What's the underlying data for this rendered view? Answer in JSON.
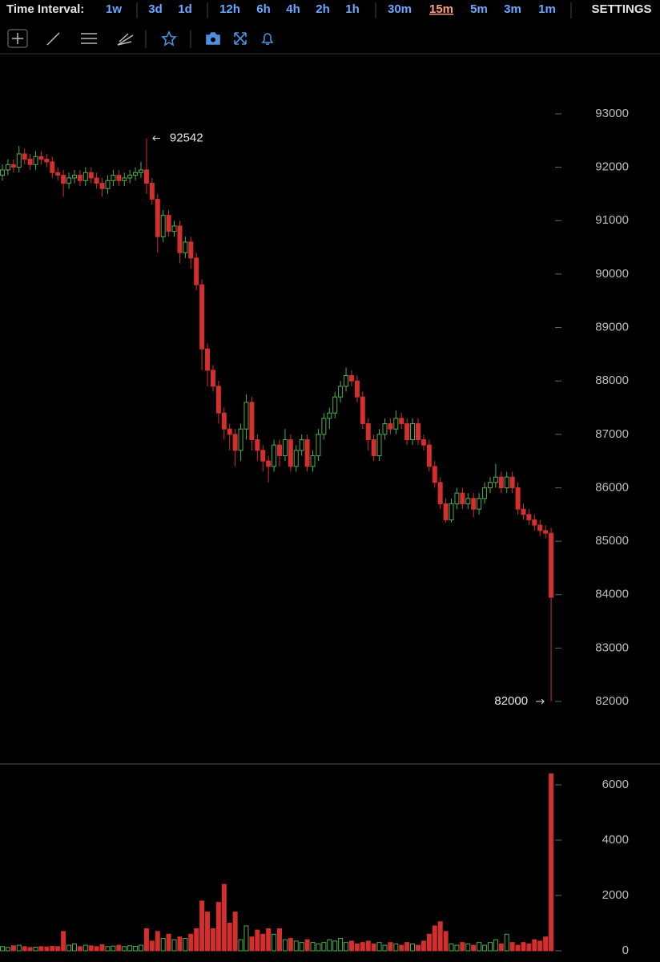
{
  "toolbar": {
    "label": "Time Interval:",
    "intervals": [
      {
        "label": "1w"
      },
      {
        "label": "3d"
      },
      {
        "label": "1d"
      },
      {
        "label": "12h"
      },
      {
        "label": "6h"
      },
      {
        "label": "4h"
      },
      {
        "label": "2h"
      },
      {
        "label": "1h"
      },
      {
        "label": "30m"
      },
      {
        "label": "15m",
        "selected": true
      },
      {
        "label": "5m"
      },
      {
        "label": "3m"
      },
      {
        "label": "1m"
      }
    ],
    "settings": "SETTINGS"
  },
  "chart_data": [
    {
      "type": "candlestick",
      "up_color": "#4caf50",
      "down_color": "#d32f2f",
      "ylim": [
        80830,
        94125
      ],
      "yticks": [
        82000,
        83000,
        84000,
        85000,
        86000,
        87000,
        88000,
        89000,
        90000,
        91000,
        92000,
        93000
      ],
      "open": [
        91850,
        91950,
        92050,
        92000,
        92250,
        92150,
        92050,
        92200,
        92150,
        92100,
        91900,
        91850,
        91700,
        91800,
        91850,
        91750,
        91900,
        91800,
        91700,
        91600,
        91750,
        91850,
        91750,
        91800,
        91850,
        91900,
        91950,
        91700,
        91400,
        90700,
        91100,
        90800,
        90900,
        90400,
        90600,
        90300,
        89800,
        88600,
        88200,
        87900,
        87400,
        87100,
        87000,
        86700,
        87100,
        87600,
        86900,
        86700,
        86500,
        86400,
        86800,
        86600,
        86900,
        86400,
        86700,
        86900,
        86400,
        86600,
        87000,
        87300,
        87400,
        87700,
        87900,
        88100,
        88000,
        87700,
        87200,
        86900,
        86600,
        87000,
        87200,
        87100,
        87300,
        87200,
        86900,
        87200,
        86900,
        86800,
        86400,
        86100,
        85700,
        85400,
        85700,
        85900,
        85700,
        85800,
        85600,
        85800,
        86000,
        86100,
        86200,
        86000,
        86200,
        86000,
        85600,
        85500,
        85400,
        85300,
        85200,
        85150
      ],
      "high": [
        92050,
        92150,
        92150,
        92400,
        92350,
        92250,
        92300,
        92300,
        92250,
        92200,
        92000,
        91950,
        91900,
        91950,
        91950,
        92000,
        92000,
        91900,
        91800,
        91850,
        91950,
        91950,
        91900,
        91950,
        92000,
        92100,
        92542,
        91800,
        91500,
        91200,
        91200,
        91000,
        91000,
        90700,
        90700,
        90400,
        89900,
        88700,
        88300,
        88000,
        87500,
        87200,
        87100,
        87200,
        87750,
        87700,
        87000,
        86800,
        86600,
        86900,
        86900,
        87100,
        87000,
        86800,
        87000,
        87000,
        86700,
        87100,
        87400,
        87500,
        87800,
        88000,
        88250,
        88200,
        88100,
        87800,
        87300,
        87000,
        87100,
        87300,
        87300,
        87450,
        87400,
        87300,
        87300,
        87300,
        87000,
        86900,
        86500,
        86200,
        85800,
        85800,
        86000,
        86000,
        85900,
        85900,
        85900,
        86100,
        86200,
        86450,
        86300,
        86300,
        86300,
        86100,
        85700,
        85600,
        85500,
        85400,
        85300,
        85250
      ],
      "low": [
        91750,
        91850,
        91900,
        91900,
        92050,
        91950,
        91950,
        92050,
        92000,
        91800,
        91750,
        91450,
        91600,
        91700,
        91650,
        91650,
        91700,
        91600,
        91450,
        91500,
        91650,
        91650,
        91650,
        91700,
        91750,
        91800,
        91500,
        91300,
        90400,
        90600,
        90700,
        90700,
        90200,
        90300,
        90100,
        89700,
        88200,
        87900,
        87800,
        87200,
        86900,
        86700,
        86400,
        86500,
        86900,
        86700,
        86500,
        86300,
        86100,
        86300,
        86400,
        86500,
        86300,
        86300,
        86600,
        86300,
        86300,
        86500,
        86900,
        87100,
        87300,
        87600,
        87800,
        87900,
        87600,
        87100,
        86700,
        86500,
        86500,
        86900,
        87000,
        87000,
        87100,
        86800,
        86800,
        86800,
        86700,
        86300,
        86000,
        85600,
        85350,
        85350,
        85600,
        85600,
        85600,
        85450,
        85500,
        85700,
        85900,
        86000,
        85900,
        85900,
        85900,
        85500,
        85400,
        85300,
        85200,
        85100,
        85050,
        82000
      ],
      "close": [
        91950,
        92050,
        92000,
        92250,
        92150,
        92050,
        92200,
        92150,
        92100,
        91900,
        91850,
        91700,
        91800,
        91850,
        91750,
        91900,
        91800,
        91700,
        91600,
        91750,
        91850,
        91750,
        91800,
        91850,
        91900,
        91950,
        91700,
        91400,
        90700,
        91100,
        90800,
        90900,
        90400,
        90600,
        90300,
        89800,
        88600,
        88200,
        87900,
        87400,
        87100,
        87000,
        86700,
        87100,
        87600,
        86900,
        86700,
        86500,
        86400,
        86800,
        86600,
        86900,
        86400,
        86700,
        86900,
        86400,
        86600,
        87000,
        87300,
        87400,
        87700,
        87900,
        88100,
        88000,
        87700,
        87200,
        86900,
        86600,
        87000,
        87200,
        87100,
        87300,
        87200,
        86900,
        87200,
        86900,
        86800,
        86400,
        86100,
        85700,
        85400,
        85700,
        85900,
        85700,
        85800,
        85600,
        85800,
        86000,
        86100,
        86200,
        86000,
        86200,
        86000,
        85600,
        85500,
        85400,
        85300,
        85200,
        85150,
        83950
      ]
    },
    {
      "type": "bar",
      "ylim": [
        -406,
        6696
      ],
      "yticks": [
        0,
        2000,
        4000,
        6000
      ],
      "values": [
        150,
        120,
        180,
        200,
        150,
        120,
        130,
        150,
        140,
        160,
        150,
        700,
        200,
        250,
        150,
        200,
        180,
        150,
        220,
        150,
        170,
        200,
        150,
        180,
        160,
        200,
        800,
        350,
        700,
        450,
        600,
        400,
        500,
        450,
        600,
        800,
        1800,
        1400,
        800,
        1750,
        2400,
        1000,
        1400,
        400,
        900,
        500,
        750,
        600,
        800,
        600,
        800,
        400,
        450,
        350,
        300,
        400,
        300,
        250,
        300,
        400,
        350,
        450,
        300,
        350,
        250,
        300,
        350,
        250,
        300,
        200,
        300,
        250,
        200,
        300,
        250,
        200,
        350,
        600,
        900,
        1050,
        700,
        250,
        200,
        300,
        250,
        200,
        300,
        200,
        300,
        400,
        250,
        600,
        300,
        200,
        300,
        250,
        400,
        350,
        500,
        6400
      ]
    }
  ]
}
